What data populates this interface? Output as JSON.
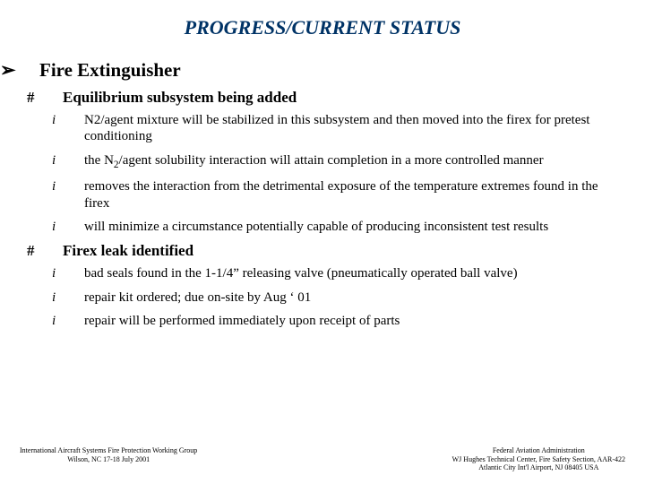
{
  "title": "PROGRESS/CURRENT STATUS",
  "colors": {
    "title": "#003366",
    "text": "#000000",
    "background": "#ffffff"
  },
  "fonts": {
    "family": "Times New Roman",
    "title_size": 22,
    "lvl1_size": 21,
    "lvl2_size": 17,
    "lvl3_size": 15,
    "footer_size": 8
  },
  "bullets": {
    "lvl1": "➢",
    "lvl2": "#",
    "lvl3": "i"
  },
  "content": {
    "h1": "Fire Extinguisher",
    "sec1": {
      "h": "Equilibrium subsystem being added",
      "p1a": "N2/agent mixture will be stabilized in this subsystem and then moved into the firex for pretest conditioning",
      "p2a": "the N",
      "p2b": "/agent solubility interaction will attain completion in a more controlled manner",
      "p3": "removes the interaction from the detrimental exposure of the temperature extremes found in the firex",
      "p4": "will minimize a circumstance potentially capable of producing inconsistent test results"
    },
    "sec2": {
      "h": "Firex leak identified",
      "p1": "bad seals found in the 1-1/4” releasing valve (pneumatically operated ball valve)",
      "p2": "repair kit ordered; due on-site by Aug ‘ 01",
      "p3": "repair will be performed immediately upon receipt of parts"
    }
  },
  "footer": {
    "left1": "International Aircraft Systems Fire Protection Working Group",
    "left2": "Wilson, NC    17-18 July 2001",
    "right1": "Federal Aviation Administration",
    "right2": "WJ Hughes Technical Center, Fire Safety Section, AAR-422",
    "right3": "Atlantic City Int'l Airport, NJ 08405   USA"
  }
}
